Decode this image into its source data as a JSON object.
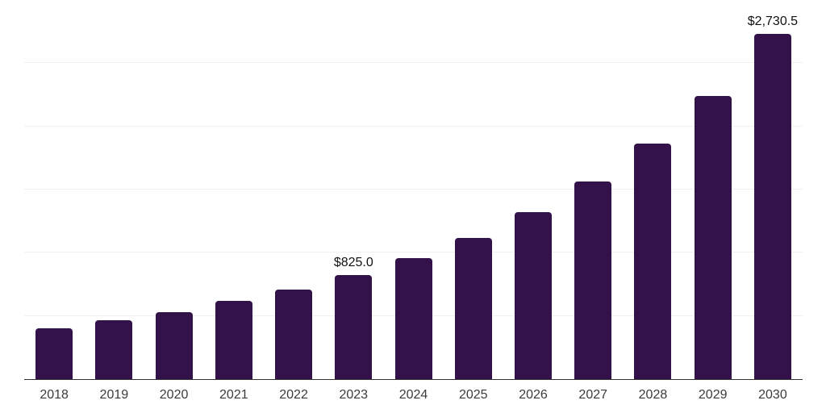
{
  "chart_data": {
    "type": "bar",
    "title": "",
    "xlabel": "",
    "ylabel": "",
    "categories": [
      "2018",
      "2019",
      "2020",
      "2021",
      "2022",
      "2023",
      "2024",
      "2025",
      "2026",
      "2027",
      "2028",
      "2029",
      "2030"
    ],
    "values": [
      400,
      466,
      532,
      617,
      709,
      825.0,
      956,
      1118,
      1322,
      1567,
      1865,
      2242,
      2730.5
    ],
    "annotations": [
      {
        "category": "2023",
        "text": "$825.0"
      },
      {
        "category": "2030",
        "text": "$2,730.5"
      }
    ],
    "ylim": [
      0,
      3000
    ],
    "grid_step": 500,
    "grid": true,
    "legend": false,
    "bar_color": "#33124a",
    "grid_color": "#f0f0f0",
    "axis_color": "#333333",
    "value_label_color": "#111111",
    "tick_label_color": "#3b3b3b",
    "background_color": "#ffffff"
  }
}
